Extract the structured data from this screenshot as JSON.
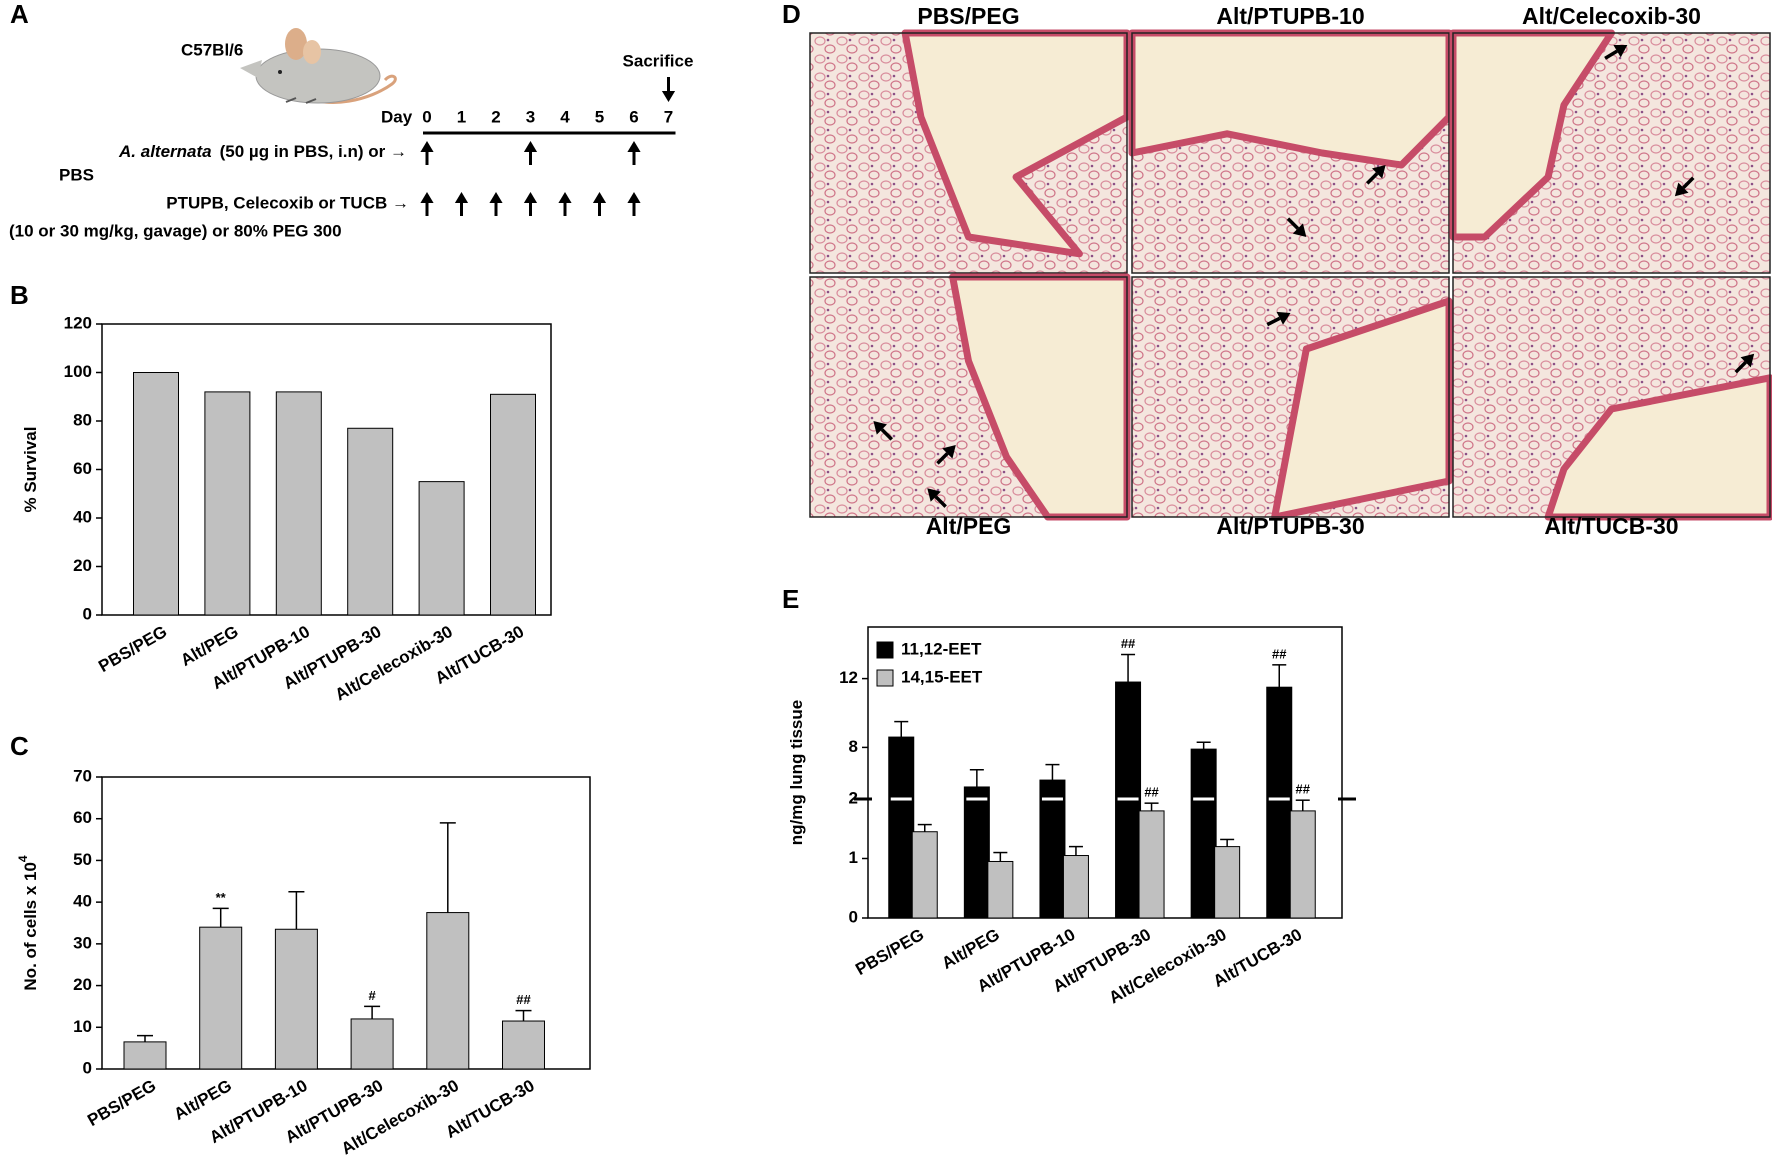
{
  "panel_labels": [
    "A",
    "B",
    "C",
    "D",
    "E"
  ],
  "panel_a": {
    "strain": "C57Bl/6",
    "sacrifice": "Sacrifice",
    "sacrifice_day": 7,
    "day_label": "Day",
    "days": [
      0,
      1,
      2,
      3,
      4,
      5,
      6,
      7
    ],
    "challenge": {
      "label_italic": "A. alternata",
      "label": "(50 µg in PBS, i.n) or →",
      "label_line2": "PBS",
      "days": [
        0,
        3,
        6
      ]
    },
    "treatment": {
      "label": "PTUPB, Celecoxib or TUCB →",
      "label_line2": "(10 or 30 mg/kg, gavage) or 80% PEG 300",
      "days": [
        0,
        1,
        2,
        3,
        4,
        5,
        6
      ]
    }
  },
  "panel_d": {
    "images": [
      "PBS/PEG",
      "Alt/PTUPB-10",
      "Alt/Celecoxib-30",
      "Alt/PEG",
      "Alt/PTUPB-30",
      "Alt/TUCB-30"
    ]
  },
  "chart_data": [
    {
      "type": "bar",
      "ylabel": "% Survival",
      "categories": [
        "PBS/PEG",
        "Alt/PEG",
        "Alt/PTUPB-10",
        "Alt/PTUPB-30",
        "Alt/Celecoxib-30",
        "Alt/TUCB-30"
      ],
      "values": [
        100,
        92,
        92,
        77,
        55,
        91
      ],
      "color": "#c0c0c0",
      "ylim": [
        0,
        120
      ],
      "yticks": [
        0,
        20,
        40,
        60,
        80,
        100,
        120
      ]
    },
    {
      "type": "bar",
      "ylabel": "No. of cells x 10",
      "ylabel_superscript": "4",
      "categories": [
        "PBS/PEG",
        "Alt/PEG",
        "Alt/PTUPB-10",
        "Alt/PTUPB-30",
        "Alt/Celecoxib-30",
        "Alt/TUCB-30"
      ],
      "values": [
        6.5,
        34,
        33.5,
        12,
        37.5,
        11.5
      ],
      "errors": [
        1.5,
        4.5,
        9,
        3,
        21.5,
        2.5
      ],
      "annotations": [
        null,
        "**",
        null,
        "#",
        null,
        "##"
      ],
      "color": "#c0c0c0",
      "ylim": [
        0,
        70
      ],
      "yticks": [
        0,
        10,
        20,
        30,
        40,
        50,
        60,
        70
      ]
    },
    {
      "type": "broken_bar",
      "ylabel": "ng/mg lung tissue",
      "categories": [
        "PBS/PEG",
        "Alt/PEG",
        "Alt/PTUPB-10",
        "Alt/PTUPB-30",
        "Alt/Celecoxib-30",
        "Alt/TUCB-30"
      ],
      "series": [
        {
          "name": "11,12-EET",
          "color": "#000000",
          "values": [
            8.6,
            5.7,
            6.1,
            11.8,
            7.9,
            11.5
          ],
          "errors": [
            0.9,
            1.0,
            0.9,
            1.6,
            0.4,
            1.3
          ],
          "annotations": [
            null,
            null,
            null,
            "##",
            null,
            "##"
          ]
        },
        {
          "name": "14,15-EET",
          "color": "#c0c0c0",
          "values": [
            1.45,
            0.95,
            1.05,
            1.8,
            1.2,
            1.8
          ],
          "errors": [
            0.12,
            0.15,
            0.15,
            0.13,
            0.12,
            0.18
          ],
          "annotations": [
            null,
            null,
            null,
            "##",
            null,
            "##"
          ]
        }
      ],
      "ylim": [
        0,
        15
      ],
      "ybreak": [
        2,
        5
      ],
      "yticks": [
        0,
        1,
        2,
        8,
        12
      ],
      "legend": "upper left"
    }
  ]
}
